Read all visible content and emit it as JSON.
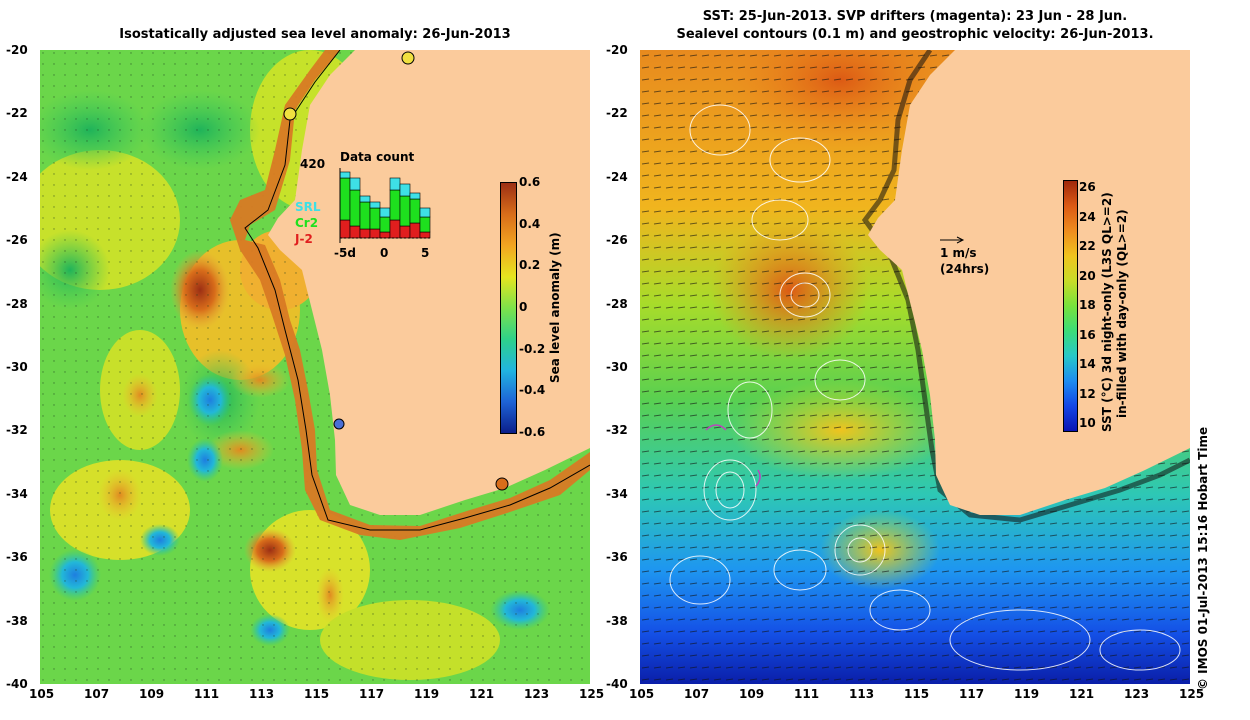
{
  "left_panel": {
    "title": "Isostatically adjusted sea level anomaly: 26-Jun-2013",
    "colorbar": {
      "label": "Sea level anomaly (m)",
      "ticks": [
        "0.6",
        "0.4",
        "0.2",
        "0",
        "-0.2",
        "-0.4",
        "-0.6"
      ],
      "colors": [
        "#0b1f8a",
        "#1e63d6",
        "#21b4e0",
        "#2ed18a",
        "#7ee24a",
        "#e6e51f",
        "#f2a521",
        "#d86d1a",
        "#9c2f14"
      ]
    },
    "inset": {
      "count": "420",
      "title": "Data count",
      "legend": [
        "SRL",
        "Cr2",
        "J-2"
      ],
      "legend_colors": [
        "#3ee0e6",
        "#1ee01e",
        "#e01e1e"
      ],
      "xticks": [
        "-5d",
        "0",
        "5"
      ],
      "bars": [
        {
          "srl": 2,
          "cr2": 14,
          "j2": 6
        },
        {
          "srl": 4,
          "cr2": 12,
          "j2": 4
        },
        {
          "srl": 2,
          "cr2": 9,
          "j2": 3
        },
        {
          "srl": 2,
          "cr2": 7,
          "j2": 3
        },
        {
          "srl": 3,
          "cr2": 5,
          "j2": 2
        },
        {
          "srl": 4,
          "cr2": 10,
          "j2": 6
        },
        {
          "srl": 4,
          "cr2": 10,
          "j2": 4
        },
        {
          "srl": 2,
          "cr2": 8,
          "j2": 5
        },
        {
          "srl": 3,
          "cr2": 5,
          "j2": 2
        }
      ]
    }
  },
  "right_panel": {
    "title_line1": "SST: 25-Jun-2013. SVP drifters (magenta): 23 Jun - 28 Jun.",
    "title_line2": "Sealevel contours (0.1 m) and geostrophic velocity: 26-Jun-2013.",
    "scale_arrow": "1 m/s",
    "scale_note": "(24hrs)",
    "colorbar": {
      "label1": "SST (°C) 3d night-only (L3S QL>=2)",
      "label2": "in-filled with day-only (QL>=2)",
      "ticks": [
        "26",
        "24",
        "22",
        "20",
        "18",
        "16",
        "14",
        "12",
        "10"
      ],
      "colors": [
        "#0a14b4",
        "#1446e6",
        "#1e8cf0",
        "#28c8c8",
        "#3cdc78",
        "#78e23c",
        "#c8dc28",
        "#f0c31e",
        "#ee8c1e",
        "#dc5a14",
        "#a0280a"
      ]
    }
  },
  "axes": {
    "lat_ticks": [
      "-20",
      "-22",
      "-24",
      "-26",
      "-28",
      "-30",
      "-32",
      "-34",
      "-36",
      "-38",
      "-40"
    ],
    "lon_ticks": [
      "105",
      "107",
      "109",
      "111",
      "113",
      "115",
      "117",
      "119",
      "121",
      "123",
      "125"
    ]
  },
  "credit": "© IMOS 01-Jul-2013 15:16 Hobart Time"
}
